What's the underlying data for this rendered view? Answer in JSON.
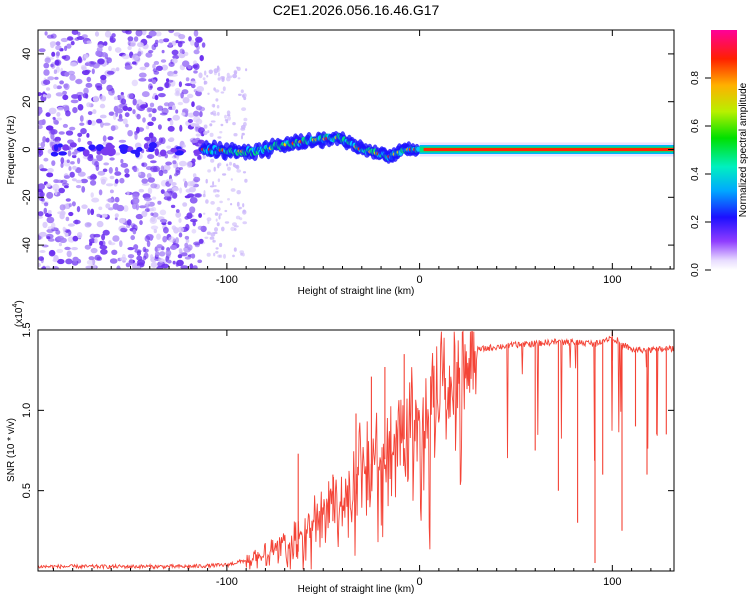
{
  "title": "C2E1.2026.056.16.46.G17",
  "colors": {
    "signal": "#f44336",
    "spectrum_noise": "#7a3cf0",
    "frame": "#000000"
  },
  "chart_data": [
    {
      "type": "heatmap",
      "name": "spectrogram",
      "xlabel": "Height of straight line (km)",
      "ylabel": "Frequency (Hz)",
      "xlim": [
        -198,
        132
      ],
      "ylim": [
        -50,
        50
      ],
      "x_ticks": [
        -100,
        0,
        100
      ],
      "y_ticks": [
        -40,
        -20,
        0,
        20,
        40
      ],
      "ridge": {
        "description_points": [
          [
            -110,
            0
          ],
          [
            -85,
            -1
          ],
          [
            -70,
            2
          ],
          [
            -55,
            4
          ],
          [
            -42,
            5
          ],
          [
            -38,
            3
          ],
          [
            -30,
            0
          ],
          [
            -15,
            -3
          ],
          [
            -8,
            0
          ],
          [
            0,
            0
          ],
          [
            132,
            0
          ]
        ]
      },
      "colorbar": {
        "label": "Normalized spectral amplitude",
        "range": [
          0,
          1
        ],
        "ticks": [
          0.0,
          0.2,
          0.4,
          0.6,
          0.8
        ],
        "tick_labels": [
          "0.0",
          "0.2",
          "0.4",
          "0.6",
          "0.8"
        ]
      }
    },
    {
      "type": "line",
      "name": "snr",
      "xlabel": "Height of straight line (km)",
      "ylabel": "SNR (10 * v/v)",
      "scale_note": "(x10",
      "scale_exp": "4",
      "xlim": [
        -198,
        132
      ],
      "ylim": [
        0,
        1.5
      ],
      "x_ticks": [
        -100,
        0,
        100
      ],
      "y_ticks": [
        0.5,
        1.0,
        1.5
      ],
      "y_tick_labels": [
        "0.5",
        "1.0",
        "1.5"
      ],
      "envelope": {
        "x": [
          -198,
          -120,
          -100,
          -90,
          -80,
          -70,
          -60,
          -50,
          -40,
          -30,
          -20,
          -10,
          0,
          10,
          20,
          30,
          40,
          50,
          60,
          70,
          80,
          90,
          100,
          110,
          120,
          132
        ],
        "y": [
          0.03,
          0.03,
          0.04,
          0.07,
          0.12,
          0.2,
          0.3,
          0.4,
          0.52,
          0.68,
          0.82,
          0.95,
          1.05,
          1.2,
          1.32,
          1.38,
          1.4,
          1.41,
          1.42,
          1.43,
          1.43,
          1.42,
          1.46,
          1.38,
          1.38,
          1.39
        ]
      },
      "spikes": [
        {
          "x": -63,
          "y": 0.73
        },
        {
          "x": -45,
          "y": 0.6
        },
        {
          "x": -33,
          "y": 0.98
        },
        {
          "x": -25,
          "y": 1.21
        },
        {
          "x": -18,
          "y": 1.27
        },
        {
          "x": -8,
          "y": 1.35
        },
        {
          "x": 100,
          "y": 1.49
        }
      ],
      "dips": [
        {
          "x": 60,
          "y": 0.75
        },
        {
          "x": 72,
          "y": 0.5
        },
        {
          "x": 82,
          "y": 0.3
        },
        {
          "x": 91,
          "y": 0.05
        },
        {
          "x": 95,
          "y": 0.6
        },
        {
          "x": 105,
          "y": 0.25
        },
        {
          "x": 112,
          "y": 0.9
        },
        {
          "x": 118,
          "y": 0.6
        },
        {
          "x": 123,
          "y": 0.85
        },
        {
          "x": 128,
          "y": 0.85
        }
      ]
    }
  ]
}
